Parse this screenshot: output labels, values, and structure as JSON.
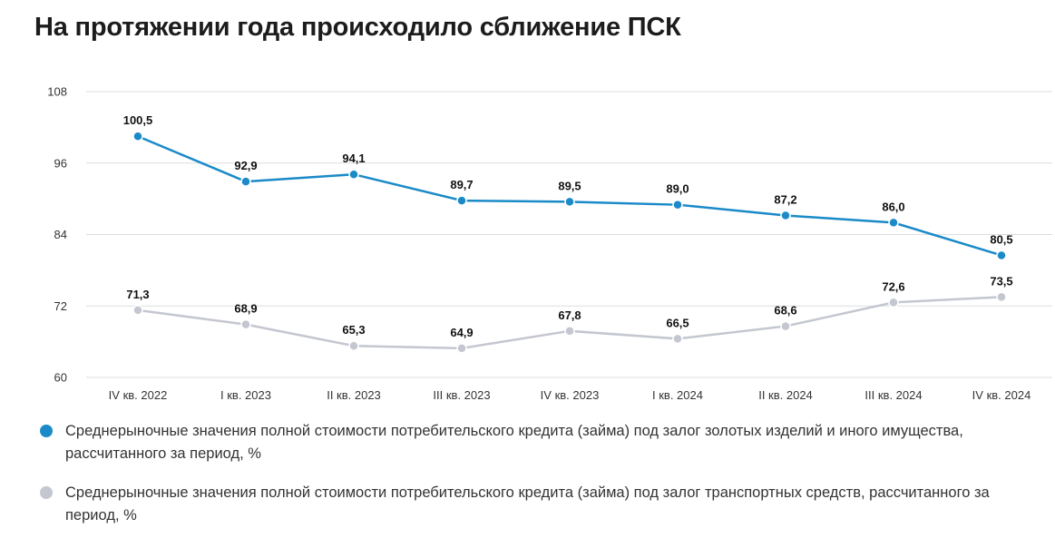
{
  "title": "На протяжении года происходило сближение ПСК",
  "chart_data": {
    "type": "line",
    "categories": [
      "IV кв. 2022",
      "I кв. 2023",
      "II кв. 2023",
      "III кв. 2023",
      "IV кв. 2023",
      "I кв. 2024",
      "II кв. 2024",
      "III кв. 2024",
      "IV кв. 2024"
    ],
    "ylim": [
      60,
      108
    ],
    "yticks": [
      60,
      72,
      84,
      96,
      108
    ],
    "grid": true,
    "series": [
      {
        "name": "Среднерыночные значения полной стоимости потребительского кредита (займа) под залог золотых изделий и иного имущества, рассчитанного за период, %",
        "color": "#1a8ac8",
        "values": [
          100.5,
          92.9,
          94.1,
          89.7,
          89.5,
          89.0,
          87.2,
          86.0,
          80.5
        ],
        "labels": [
          "100,5",
          "92,9",
          "94,1",
          "89,7",
          "89,5",
          "89,0",
          "87,2",
          "86,0",
          "80,5"
        ]
      },
      {
        "name": "Среднерыночные значения полной стоимости потребительского кредита (займа) под залог транспортных средств, рассчитанного за период, %",
        "color": "#c4c6d0",
        "values": [
          71.3,
          68.9,
          65.3,
          64.9,
          67.8,
          66.5,
          68.6,
          72.6,
          73.5
        ],
        "labels": [
          "71,3",
          "68,9",
          "65,3",
          "64,9",
          "67,8",
          "66,5",
          "68,6",
          "72,6",
          "73,5"
        ]
      }
    ]
  }
}
